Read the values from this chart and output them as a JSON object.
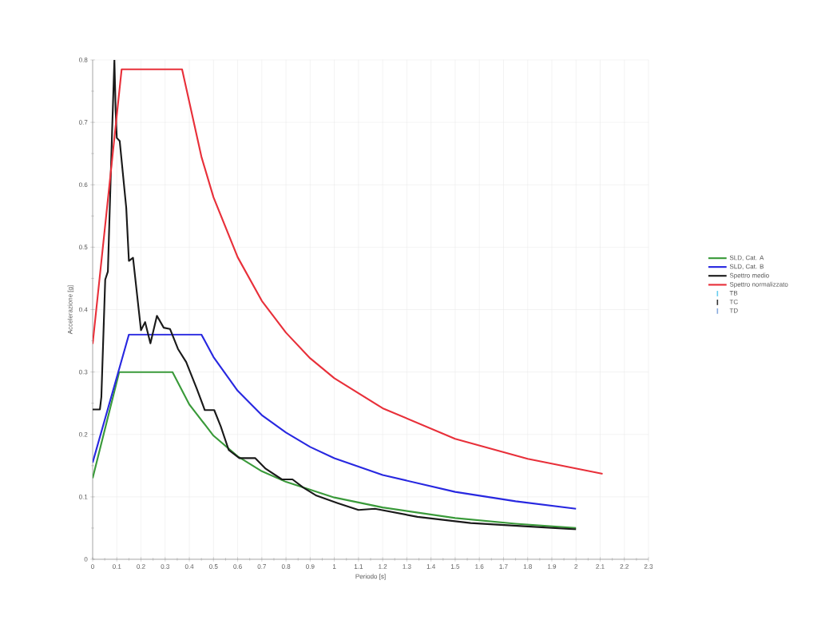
{
  "chart_data": {
    "type": "line",
    "xlabel": "Periodo [s]",
    "ylabel": "Accelerazione [g]",
    "xlim": [
      0,
      2.3
    ],
    "xticks": [
      0,
      0.1,
      0.2,
      0.3,
      0.4,
      0.5,
      0.6,
      0.7,
      0.8,
      0.9,
      1,
      1.1,
      1.2,
      1.3,
      1.4,
      1.5,
      1.6,
      1.7,
      1.8,
      1.9,
      2,
      2.1,
      2.2,
      2.3
    ],
    "ylim": [
      0,
      0.8
    ],
    "yticks": [
      0,
      0.1,
      0.2,
      0.3,
      0.4,
      0.5,
      0.6,
      0.7,
      0.8
    ],
    "grid": true,
    "legend": "right",
    "marker": "none",
    "line_style": "solid",
    "series": [
      {
        "name": "SLD, Cat. A",
        "color": "#3a9a3a",
        "x": [
          0,
          0.11,
          0.33,
          0.4,
          0.5,
          0.6,
          0.7,
          0.8,
          1.0,
          1.2,
          1.5,
          1.75,
          2.0
        ],
        "values": [
          0.13,
          0.3,
          0.3,
          0.248,
          0.198,
          0.165,
          0.141,
          0.124,
          0.099,
          0.083,
          0.066,
          0.057,
          0.05
        ]
      },
      {
        "name": "SLD, Cat. B",
        "color": "#2828e0",
        "x": [
          0,
          0.15,
          0.45,
          0.5,
          0.6,
          0.7,
          0.8,
          0.9,
          1.0,
          1.2,
          1.5,
          1.75,
          2.0
        ],
        "values": [
          0.155,
          0.36,
          0.36,
          0.324,
          0.27,
          0.231,
          0.203,
          0.18,
          0.162,
          0.135,
          0.108,
          0.093,
          0.081
        ]
      },
      {
        "name": "Spettro medio",
        "color": "#1a1a1a",
        "x": [
          0,
          0.03,
          0.036,
          0.052,
          0.063,
          0.08,
          0.09,
          0.095,
          0.1,
          0.112,
          0.139,
          0.15,
          0.167,
          0.2,
          0.217,
          0.239,
          0.266,
          0.294,
          0.32,
          0.353,
          0.387,
          0.431,
          0.464,
          0.503,
          0.53,
          0.563,
          0.607,
          0.673,
          0.716,
          0.783,
          0.827,
          0.871,
          0.926,
          1.014,
          1.1,
          1.168,
          1.344,
          1.564,
          1.785,
          2.0
        ],
        "values": [
          0.24,
          0.24,
          0.26,
          0.448,
          0.461,
          0.68,
          0.8,
          0.72,
          0.675,
          0.67,
          0.563,
          0.478,
          0.483,
          0.367,
          0.38,
          0.346,
          0.39,
          0.371,
          0.369,
          0.337,
          0.316,
          0.273,
          0.239,
          0.239,
          0.213,
          0.175,
          0.162,
          0.162,
          0.145,
          0.128,
          0.128,
          0.115,
          0.102,
          0.09,
          0.079,
          0.081,
          0.068,
          0.058,
          0.053,
          0.048
        ]
      },
      {
        "name": "Spettro normalizzato",
        "color": "#e8303a",
        "x": [
          0,
          0.12,
          0.37,
          0.45,
          0.5,
          0.6,
          0.7,
          0.8,
          0.9,
          1.0,
          1.2,
          1.5,
          1.8,
          2.11
        ],
        "values": [
          0.345,
          0.785,
          0.785,
          0.645,
          0.58,
          0.484,
          0.414,
          0.363,
          0.322,
          0.29,
          0.242,
          0.193,
          0.161,
          0.137
        ]
      },
      {
        "name": "TB",
        "color": "#66ccee"
      },
      {
        "name": "TC",
        "color": "#333333"
      },
      {
        "name": "TD",
        "color": "#88aadd"
      }
    ]
  }
}
